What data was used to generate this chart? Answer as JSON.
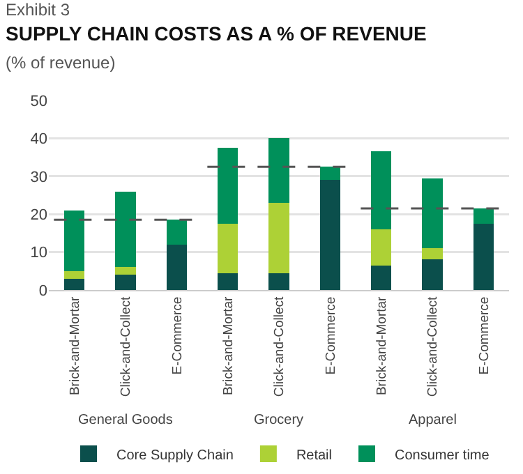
{
  "chart_data": {
    "type": "bar",
    "title": "SUPPLY CHAIN COSTS AS A % OF REVENUE",
    "subtitle": "(% of revenue)",
    "annotations": [
      "Exhibit 3",
      "General Goods",
      "Grocery",
      "Apparel"
    ],
    "categories": [
      "Brick-and-Mortar",
      "Click-and-Collect",
      "E-Commerce",
      "Brick-and-Mortar",
      "Click-and-Collect",
      "E-Commerce",
      "Brick-and-Mortar",
      "Click-and-Collect",
      "E-Commerce"
    ],
    "stacked": true,
    "series": [
      {
        "name": "Core Supply Chain",
        "color": "#0b4f4c",
        "values": [
          3,
          4,
          12,
          4.5,
          4.5,
          29,
          6.5,
          8,
          17.5
        ]
      },
      {
        "name": "Retail",
        "color": "#add136",
        "values": [
          2,
          2,
          0,
          13,
          18.5,
          0,
          9.5,
          3,
          0
        ]
      },
      {
        "name": "Consumer time",
        "color": "#00905a",
        "values": [
          16,
          20,
          6.5,
          20,
          17,
          3.5,
          20.5,
          18.5,
          4
        ]
      }
    ],
    "ref_lines": [
      {
        "axis": "y",
        "value": 18.5,
        "color": "#555555",
        "line_style": "dashed"
      },
      {
        "axis": "y",
        "value": 32.5,
        "color": "#555555",
        "line_style": "dashed"
      },
      {
        "axis": "y",
        "value": 21.5,
        "color": "#555555",
        "line_style": "dashed"
      }
    ],
    "ylim": [
      0,
      50
    ],
    "yticks": [
      0,
      10,
      20,
      30,
      40,
      50
    ],
    "grid": "y",
    "legend": "bottom"
  }
}
